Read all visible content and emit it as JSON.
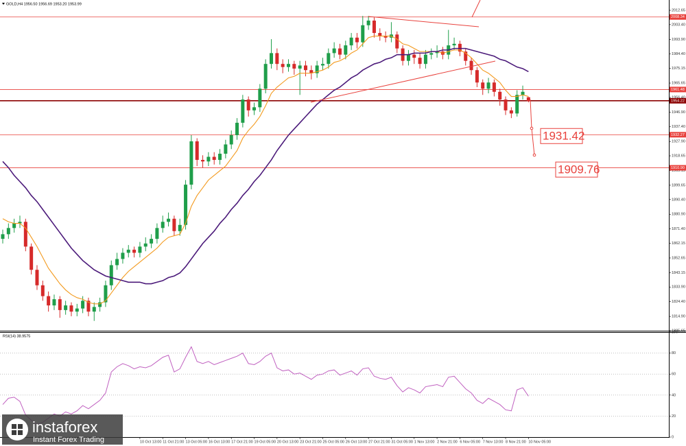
{
  "chart_data": [
    {
      "type": "candlestick",
      "title": "GOLD,H4 1956.50 1956.69 1953.20 1953.99",
      "categories": [
        null,
        null,
        null,
        null,
        null,
        null,
        null,
        null,
        null,
        null,
        null,
        null,
        null,
        null,
        null,
        null,
        null,
        null,
        null,
        null,
        null,
        null,
        null,
        null,
        "10 Oct 13:00",
        null,
        null,
        null,
        "11 Oct 21:00",
        null,
        null,
        null,
        "13 Oct 05:00",
        null,
        null,
        null,
        "16 Oct 13:00",
        null,
        null,
        null,
        "17 Oct 21:00",
        null,
        null,
        null,
        "19 Oct 05:00",
        null,
        null,
        null,
        "20 Oct 13:00",
        null,
        null,
        null,
        "23 Oct 21:00",
        null,
        null,
        null,
        "25 Oct 05:00",
        null,
        null,
        null,
        "26 Oct 13:00",
        null,
        null,
        null,
        "27 Oct 21:00",
        null,
        null,
        null,
        "31 Oct 05:00",
        null,
        null,
        null,
        "1 Nov 13:00",
        null,
        null,
        null,
        "2 Nov 21:00",
        null,
        null,
        null,
        "6 Nov 05:00",
        null,
        null,
        null,
        "7 Nov 13:00",
        null,
        null,
        null,
        "8 Nov 21:00",
        null,
        null,
        null,
        "10 Nov 05:00"
      ],
      "open": [
        1865,
        1868,
        1872,
        1875,
        1876,
        1860,
        1845,
        1835,
        1828,
        1822,
        1826,
        1819,
        1822,
        1818,
        1820,
        1825,
        1818,
        1821,
        1824,
        1835,
        1848,
        1852,
        1856,
        1858,
        1856,
        1860,
        1862,
        1865,
        1872,
        1876,
        1878,
        1870,
        1874,
        1900,
        1928,
        1916,
        1915,
        1918,
        1916,
        1920,
        1926,
        1932,
        1940,
        1955,
        1948,
        1950,
        1962,
        1978,
        1985,
        1978,
        1976,
        1978,
        1975,
        1977,
        1974,
        1972,
        1977,
        1978,
        1985,
        1988,
        1984,
        1990,
        1995,
        1992,
        2003,
        2006,
        1998,
        1996,
        1995,
        1997,
        1988,
        1980,
        1984,
        1982,
        1978,
        1984,
        1985,
        1986,
        1984,
        1990,
        1991,
        1986,
        1980,
        1974,
        1966,
        1962,
        1966,
        1960,
        1955,
        1948,
        1946,
        1958,
        1956.5
      ],
      "high": [
        1871,
        1875,
        1878,
        1880,
        1878,
        1862,
        1848,
        1838,
        1831,
        1829,
        1828,
        1825,
        1824,
        1823,
        1828,
        1827,
        1824,
        1827,
        1838,
        1851,
        1856,
        1859,
        1861,
        1860,
        1863,
        1866,
        1868,
        1875,
        1880,
        1882,
        1880,
        1878,
        1903,
        1932,
        1930,
        1919,
        1921,
        1921,
        1923,
        1929,
        1935,
        1943,
        1958,
        1957,
        1953,
        1965,
        1981,
        1994,
        1988,
        1981,
        1981,
        1980,
        1980,
        1980,
        1977,
        1980,
        1982,
        1988,
        1992,
        1991,
        1993,
        1998,
        1998,
        2009,
        2009,
        2008,
        2001,
        1999,
        2005,
        1999,
        1990,
        1987,
        1987,
        1985,
        1987,
        1988,
        1990,
        1989,
        2000,
        1995,
        1993,
        1988,
        1982,
        1976,
        1968,
        1969,
        1968,
        1962,
        1957,
        1950,
        1961,
        1964,
        1956.69
      ],
      "low": [
        1862,
        1865,
        1869,
        1872,
        1857,
        1842,
        1832,
        1825,
        1818,
        1819,
        1814,
        1816,
        1815,
        1815,
        1817,
        1815,
        1812,
        1818,
        1821,
        1832,
        1845,
        1849,
        1853,
        1853,
        1853,
        1857,
        1859,
        1862,
        1869,
        1873,
        1867,
        1867,
        1871,
        1897,
        1912,
        1911,
        1912,
        1913,
        1913,
        1917,
        1923,
        1929,
        1937,
        1944,
        1945,
        1947,
        1959,
        1975,
        1974,
        1972,
        1973,
        1971,
        1958,
        1970,
        1968,
        1969,
        1974,
        1975,
        1982,
        1981,
        1981,
        1987,
        1988,
        1989,
        2000,
        1995,
        1993,
        1992,
        1992,
        1985,
        1977,
        1977,
        1978,
        1975,
        1975,
        1981,
        1982,
        1981,
        1981,
        1987,
        1983,
        1977,
        1971,
        1963,
        1958,
        1959,
        1957,
        1951,
        1945,
        1943,
        1944,
        1955,
        1953.2
      ],
      "close": [
        1868,
        1872,
        1875,
        1876,
        1860,
        1845,
        1835,
        1828,
        1822,
        1826,
        1819,
        1822,
        1818,
        1820,
        1825,
        1818,
        1821,
        1824,
        1835,
        1848,
        1852,
        1856,
        1858,
        1856,
        1860,
        1862,
        1865,
        1872,
        1876,
        1878,
        1870,
        1874,
        1900,
        1928,
        1916,
        1915,
        1918,
        1916,
        1920,
        1926,
        1932,
        1940,
        1955,
        1948,
        1950,
        1962,
        1978,
        1985,
        1978,
        1976,
        1978,
        1975,
        1977,
        1974,
        1972,
        1977,
        1978,
        1985,
        1988,
        1984,
        1990,
        1995,
        1992,
        2003,
        2006,
        1998,
        1996,
        1995,
        1997,
        1988,
        1980,
        1984,
        1982,
        1978,
        1984,
        1985,
        1986,
        1984,
        1990,
        1991,
        1986,
        1980,
        1974,
        1966,
        1962,
        1966,
        1960,
        1955,
        1948,
        1946,
        1958,
        1960,
        1953.99
      ],
      "up_color": "#1f9e4a",
      "down_color": "#d62a2a",
      "moving_averages": [
        {
          "color": "#f39a1e",
          "values": [
            1878,
            1876,
            1875,
            1875,
            1872,
            1866,
            1860,
            1853,
            1846,
            1841,
            1836,
            1832,
            1829,
            1827,
            1826,
            1824,
            1823,
            1823,
            1825,
            1830,
            1835,
            1840,
            1844,
            1847,
            1850,
            1853,
            1856,
            1859,
            1863,
            1866,
            1867,
            1868,
            1875,
            1886,
            1893,
            1898,
            1903,
            1906,
            1909,
            1912,
            1917,
            1922,
            1930,
            1935,
            1939,
            1944,
            1951,
            1959,
            1963,
            1966,
            1969,
            1970,
            1972,
            1972,
            1972,
            1973,
            1974,
            1976,
            1979,
            1980,
            1982,
            1985,
            1987,
            1991,
            1995,
            1996,
            1996,
            1996,
            1996,
            1994,
            1991,
            1990,
            1988,
            1986,
            1986,
            1986,
            1986,
            1985,
            1986,
            1987,
            1987,
            1985,
            1982,
            1978,
            1974,
            1972,
            1969,
            1966,
            1961,
            1957,
            1957,
            1958,
            1957
          ]
        },
        {
          "color": "#4b1a7a",
          "values": [
            1915,
            1911,
            1906,
            1902,
            1898,
            1893,
            1889,
            1884,
            1879,
            1874,
            1869,
            1864,
            1859,
            1855,
            1851,
            1848,
            1845,
            1843,
            1841,
            1840,
            1839,
            1838,
            1837,
            1837,
            1837,
            1836,
            1836,
            1837,
            1838,
            1840,
            1841,
            1843,
            1847,
            1852,
            1857,
            1862,
            1866,
            1870,
            1875,
            1879,
            1884,
            1888,
            1893,
            1897,
            1902,
            1906,
            1911,
            1916,
            1922,
            1927,
            1932,
            1936,
            1940,
            1944,
            1948,
            1952,
            1955,
            1958,
            1961,
            1963,
            1966,
            1969,
            1971,
            1974,
            1976,
            1978,
            1979,
            1981,
            1982,
            1984,
            1984,
            1984,
            1985,
            1985,
            1985,
            1986,
            1986,
            1987,
            1987,
            1988,
            1988,
            1988,
            1987,
            1986,
            1985,
            1984,
            1983,
            1981,
            1980,
            1978,
            1976,
            1975,
            1973
          ]
        }
      ],
      "levels": [
        {
          "value": 2008.34,
          "color": "#e8413c"
        },
        {
          "value": 1961.48,
          "color": "#e8413c"
        },
        {
          "value": 1954.22,
          "color": "#8b0000"
        },
        {
          "value": 1932.27,
          "color": "#e8413c"
        },
        {
          "value": 1910.9,
          "label": "1910.90",
          "color": "#e8413c"
        }
      ],
      "annotations": [
        {
          "value": 1931.42
        },
        {
          "value": 1909.76
        }
      ],
      "annotation_color": "#e8413c",
      "ylim": [
        1805.65,
        2019.3
      ],
      "yticks": [
        2012.65,
        {
          "value": 2003.4,
          "label": "2003.40"
        },
        {
          "value": 1993.9,
          "label": "1993.90"
        },
        {
          "value": 1984.4,
          "label": "1984.40"
        },
        1975.15,
        1965.65,
        {
          "value": 1956.4,
          "label": "1956.40"
        },
        {
          "value": 1946.9,
          "label": "1946.90"
        },
        {
          "value": 1937.4,
          "label": "1937.40"
        },
        {
          "value": 1927.9,
          "label": "1927.90"
        },
        1918.65,
        1909.15,
        1899.65,
        {
          "value": 1890.4,
          "label": "1890.40"
        },
        {
          "value": 1880.9,
          "label": "1880.90"
        },
        {
          "value": 1871.4,
          "label": "1871.40"
        },
        1862.15,
        1852.65,
        1843.15,
        {
          "value": 1833.9,
          "label": "1833.90"
        },
        {
          "value": 1824.4,
          "label": "1824.40"
        },
        {
          "value": 1814.9,
          "label": "1814.90"
        },
        1805.65
      ],
      "grid": false
    },
    {
      "type": "line",
      "title": "RSI(14) 38.9575",
      "color": "#c060c0",
      "values": [
        31,
        37,
        38,
        34,
        21,
        16,
        12,
        14,
        18,
        22,
        20,
        24,
        22,
        25,
        30,
        27,
        31,
        35,
        42,
        62,
        67,
        70,
        68,
        65,
        67,
        66,
        68,
        72,
        76,
        78,
        62,
        65,
        76,
        86,
        72,
        70,
        72,
        69,
        71,
        73,
        75,
        77,
        80,
        70,
        69,
        72,
        77,
        80,
        66,
        63,
        64,
        60,
        61,
        58,
        55,
        59,
        60,
        63,
        64,
        59,
        61,
        63,
        59,
        65,
        66,
        58,
        56,
        55,
        57,
        49,
        43,
        47,
        45,
        42,
        48,
        49,
        50,
        48,
        57,
        58,
        52,
        46,
        42,
        35,
        32,
        37,
        34,
        31,
        26,
        25,
        45,
        47,
        38.9575
      ],
      "ylim": [
        0,
        100
      ],
      "yticks": [
        0,
        20,
        40,
        60,
        80,
        100
      ],
      "grid": true
    }
  ],
  "watermark": {
    "name": "instaforex",
    "tagline": "Instant Forex Trading"
  }
}
